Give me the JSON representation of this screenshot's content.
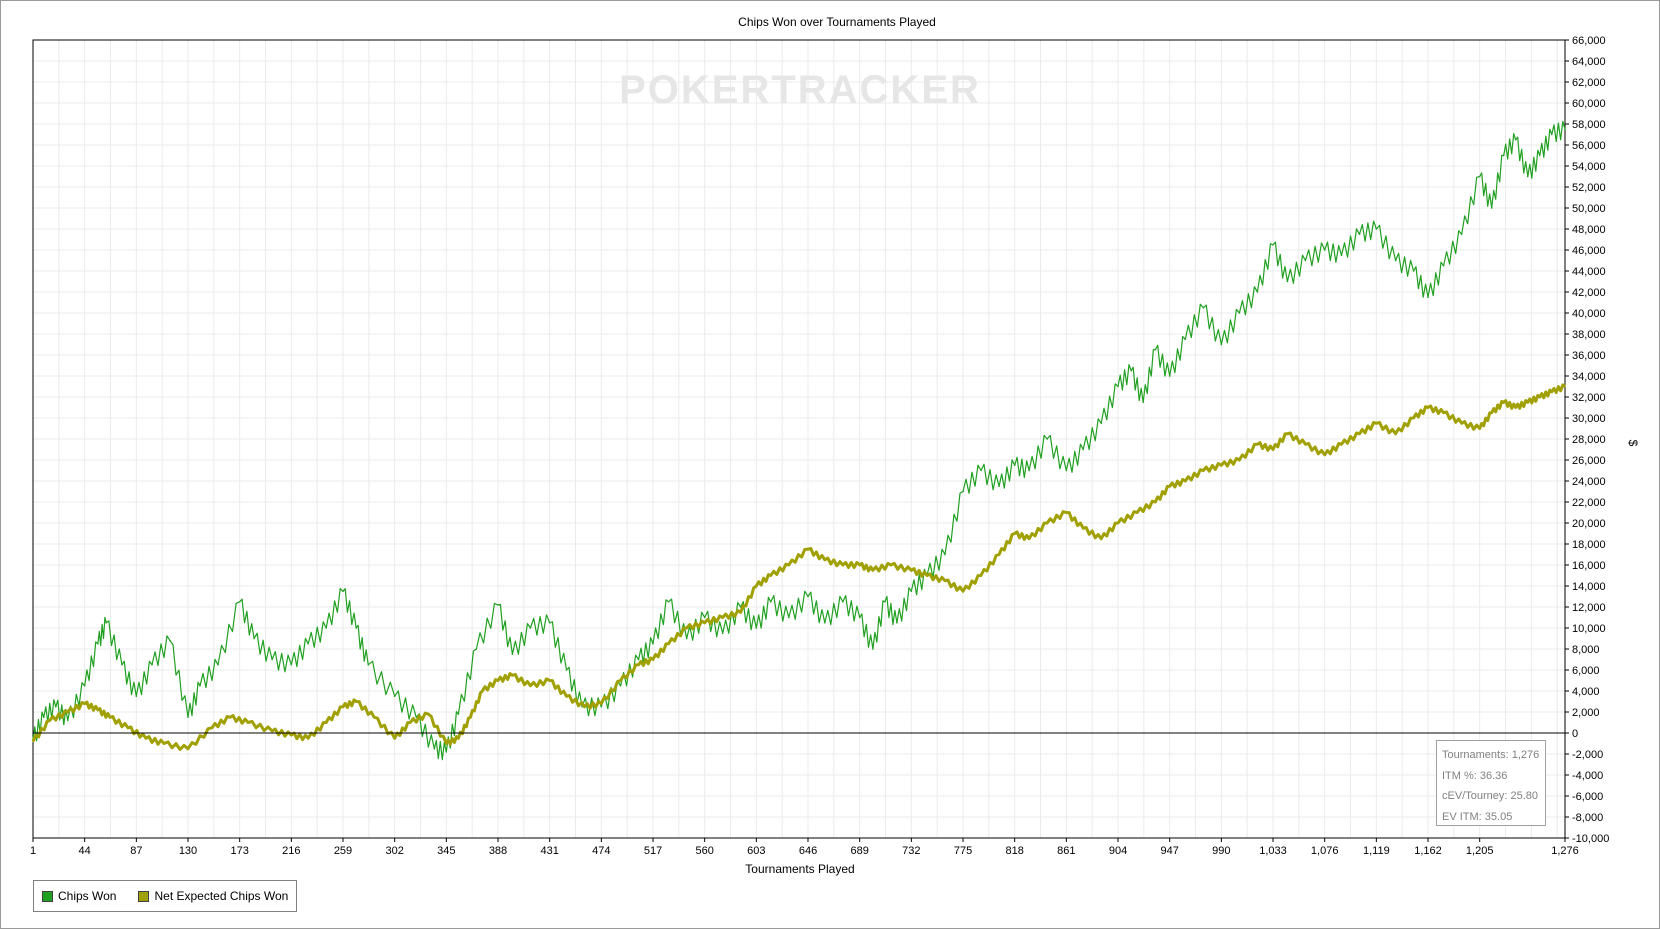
{
  "chart_data": {
    "type": "line",
    "title": "Chips Won over Tournaments Played",
    "xlabel": "Tournaments Played",
    "ylabel": "$",
    "watermark": "POKERTRACKER",
    "xlim": [
      1,
      1276
    ],
    "ylim": [
      -10000,
      66000
    ],
    "x_ticks": [
      "1",
      "44",
      "87",
      "130",
      "173",
      "216",
      "259",
      "302",
      "345",
      "388",
      "431",
      "474",
      "517",
      "560",
      "603",
      "646",
      "689",
      "732",
      "775",
      "818",
      "861",
      "904",
      "947",
      "990",
      "1,033",
      "1,076",
      "1,119",
      "1,162",
      "1,205",
      "1,276"
    ],
    "x_tick_values": [
      1,
      44,
      87,
      130,
      173,
      216,
      259,
      302,
      345,
      388,
      431,
      474,
      517,
      560,
      603,
      646,
      689,
      732,
      775,
      818,
      861,
      904,
      947,
      990,
      1033,
      1076,
      1119,
      1162,
      1205,
      1276
    ],
    "y_ticks": [
      "66,000",
      "64,000",
      "62,000",
      "60,000",
      "58,000",
      "56,000",
      "54,000",
      "52,000",
      "50,000",
      "48,000",
      "46,000",
      "44,000",
      "42,000",
      "40,000",
      "38,000",
      "36,000",
      "34,000",
      "32,000",
      "30,000",
      "28,000",
      "26,000",
      "24,000",
      "22,000",
      "20,000",
      "18,000",
      "16,000",
      "14,000",
      "12,000",
      "10,000",
      "8,000",
      "6,000",
      "4,000",
      "2,000",
      "0",
      "-2,000",
      "-4,000",
      "-6,000",
      "-8,000",
      "-10,000"
    ],
    "y_tick_values": [
      66000,
      64000,
      62000,
      60000,
      58000,
      56000,
      54000,
      52000,
      50000,
      48000,
      46000,
      44000,
      42000,
      40000,
      38000,
      36000,
      34000,
      32000,
      30000,
      28000,
      26000,
      24000,
      22000,
      20000,
      18000,
      16000,
      14000,
      12000,
      10000,
      8000,
      6000,
      4000,
      2000,
      0,
      -2000,
      -4000,
      -6000,
      -8000,
      -10000
    ],
    "grid": true,
    "legend_position": "bottom-left",
    "series": [
      {
        "name": "Chips Won",
        "color": "#20a020",
        "x": [
          1,
          10,
          20,
          30,
          44,
          55,
          62,
          75,
          87,
          100,
          115,
          130,
          140,
          155,
          173,
          185,
          200,
          216,
          230,
          245,
          259,
          270,
          280,
          302,
          320,
          335,
          345,
          355,
          370,
          388,
          400,
          415,
          431,
          445,
          458,
          474,
          490,
          505,
          517,
          530,
          545,
          560,
          575,
          590,
          603,
          615,
          630,
          646,
          660,
          675,
          689,
          700,
          710,
          720,
          732,
          745,
          760,
          775,
          790,
          805,
          818,
          830,
          845,
          861,
          875,
          890,
          904,
          915,
          925,
          935,
          947,
          960,
          975,
          990,
          1005,
          1020,
          1033,
          1045,
          1060,
          1076,
          1090,
          1105,
          1119,
          1135,
          1150,
          1162,
          1175,
          1190,
          1205,
          1215,
          1225,
          1235,
          1245,
          1255,
          1265,
          1276
        ],
        "values": [
          -600,
          1500,
          2500,
          1200,
          4500,
          8500,
          10500,
          6500,
          3500,
          6500,
          8800,
          1500,
          4500,
          6500,
          12500,
          9000,
          7000,
          6500,
          8500,
          10000,
          13500,
          10000,
          6500,
          3500,
          1500,
          -1500,
          -1800,
          1800,
          8000,
          12200,
          7500,
          10000,
          10500,
          6000,
          2500,
          2500,
          4500,
          7000,
          8500,
          12500,
          9000,
          11000,
          9500,
          12000,
          10000,
          12500,
          11000,
          13000,
          10500,
          12500,
          11000,
          8000,
          12500,
          10500,
          13500,
          15000,
          17000,
          23000,
          25000,
          23500,
          25500,
          25000,
          28000,
          25000,
          27000,
          29500,
          33000,
          34500,
          31500,
          36500,
          34000,
          37500,
          40500,
          37000,
          40000,
          42000,
          46500,
          43000,
          45000,
          46000,
          45500,
          47500,
          48000,
          45000,
          44000,
          41500,
          44500,
          47500,
          53000,
          50000,
          55000,
          56500,
          53000,
          55000,
          57000,
          57500
        ]
      },
      {
        "name": "Net Expected Chips Won",
        "color": "#a0a000",
        "x": [
          1,
          15,
          30,
          44,
          55,
          65,
          80,
          95,
          110,
          130,
          150,
          165,
          180,
          200,
          216,
          230,
          245,
          259,
          270,
          285,
          302,
          315,
          330,
          345,
          355,
          365,
          375,
          388,
          400,
          415,
          431,
          445,
          460,
          474,
          490,
          505,
          517,
          530,
          545,
          560,
          575,
          590,
          603,
          615,
          630,
          646,
          660,
          675,
          689,
          700,
          715,
          732,
          745,
          760,
          775,
          790,
          805,
          818,
          830,
          845,
          861,
          875,
          890,
          904,
          920,
          935,
          947,
          960,
          975,
          990,
          1005,
          1020,
          1033,
          1045,
          1060,
          1076,
          1090,
          1105,
          1119,
          1135,
          1150,
          1162,
          1175,
          1190,
          1205,
          1215,
          1225,
          1235,
          1245,
          1255,
          1265,
          1276
        ],
        "values": [
          -800,
          1200,
          2000,
          2800,
          2200,
          1500,
          500,
          -500,
          -1000,
          -1500,
          500,
          1500,
          1000,
          200,
          -200,
          -500,
          1000,
          2500,
          3000,
          1500,
          -500,
          1000,
          1800,
          -1000,
          -500,
          1500,
          4000,
          5000,
          5500,
          4500,
          5000,
          3500,
          2500,
          2800,
          5000,
          6500,
          7000,
          8500,
          10000,
          10500,
          11000,
          11500,
          14000,
          15000,
          16000,
          17500,
          16500,
          16000,
          16000,
          15500,
          16000,
          15500,
          15000,
          14500,
          13500,
          15000,
          17000,
          19000,
          18500,
          20000,
          21000,
          19500,
          18500,
          20000,
          21000,
          22000,
          23500,
          24000,
          25000,
          25500,
          26000,
          27500,
          27000,
          28500,
          27500,
          26500,
          27500,
          28500,
          29500,
          28500,
          30000,
          31000,
          30500,
          29500,
          29000,
          30500,
          31500,
          31000,
          31500,
          32000,
          32500,
          33000
        ]
      }
    ]
  },
  "stats": {
    "tournaments": "Tournaments: 1,276",
    "itm": "ITM %: 36.36",
    "cev": "cEV/Tourney: 25.80",
    "ev_itm": "EV ITM: 35.05"
  },
  "legend": {
    "chips_won": "Chips Won",
    "net_expected": "Net Expected Chips Won"
  }
}
